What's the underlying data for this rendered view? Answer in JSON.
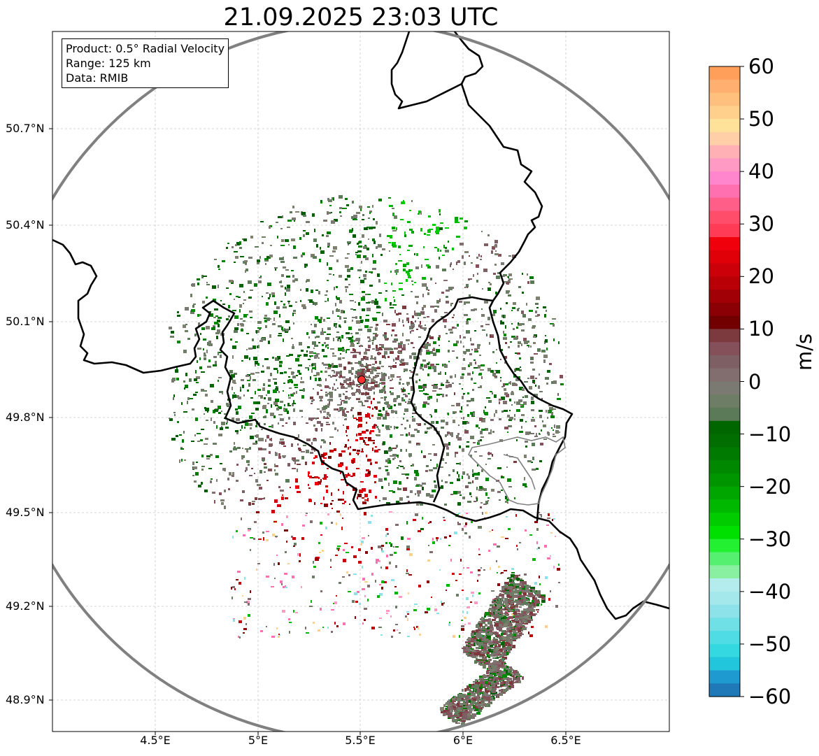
{
  "title": "21.09.2025 23:03 UTC",
  "info_box": {
    "product": "Product: 0.5° Radial Velocity",
    "range": "Range: 125 km",
    "data": "Data: RMIB"
  },
  "axes": {
    "lat_labels": [
      "50.7°N",
      "50.4°N",
      "50.1°N",
      "49.8°N",
      "49.5°N",
      "49.2°N",
      "48.9°N"
    ],
    "lon_labels": [
      "4.5°E",
      "5°E",
      "5.5°E",
      "6°E",
      "6.5°E"
    ]
  },
  "colorbar": {
    "unit": "m/s",
    "ticks": [
      "60",
      "50",
      "40",
      "30",
      "20",
      "10",
      "0",
      "−10",
      "−20",
      "−30",
      "−40",
      "−50",
      "−60"
    ],
    "range": [
      -60,
      60
    ],
    "colors_top_to_bottom": [
      "#ff9f5a",
      "#ffb070",
      "#ffc07e",
      "#ffd08c",
      "#ffe29a",
      "#ffd0a8",
      "#ffb0b4",
      "#ff9ac4",
      "#ff86cc",
      "#ff70b0",
      "#ff5e88",
      "#ff4d6a",
      "#ff3b55",
      "#f0000a",
      "#e00008",
      "#cc0008",
      "#b80006",
      "#a00006",
      "#8a0004",
      "#720000",
      "#7c3a3e",
      "#86505a",
      "#7e6064",
      "#826e6e",
      "#7a7a72",
      "#6e7e66",
      "#5a7a58",
      "#006600",
      "#006e00",
      "#007a00",
      "#008800",
      "#009600",
      "#00a600",
      "#00b800",
      "#00cc00",
      "#00e000",
      "#22f030",
      "#55f070",
      "#88f0a0",
      "#b4ecee",
      "#a4e8ec",
      "#8ce2e8",
      "#6ee0e6",
      "#50dce4",
      "#34d8e0",
      "#22c6dc",
      "#1e9ad0",
      "#1f78b8"
    ],
    "marker_colors": [
      "#ff3030"
    ]
  },
  "map": {
    "radar_site": "radar-site-marker",
    "colors": {
      "range_ring": "#808080",
      "border": "#000000",
      "sub_border": "#808080",
      "grid": "#c0c0c0"
    }
  }
}
